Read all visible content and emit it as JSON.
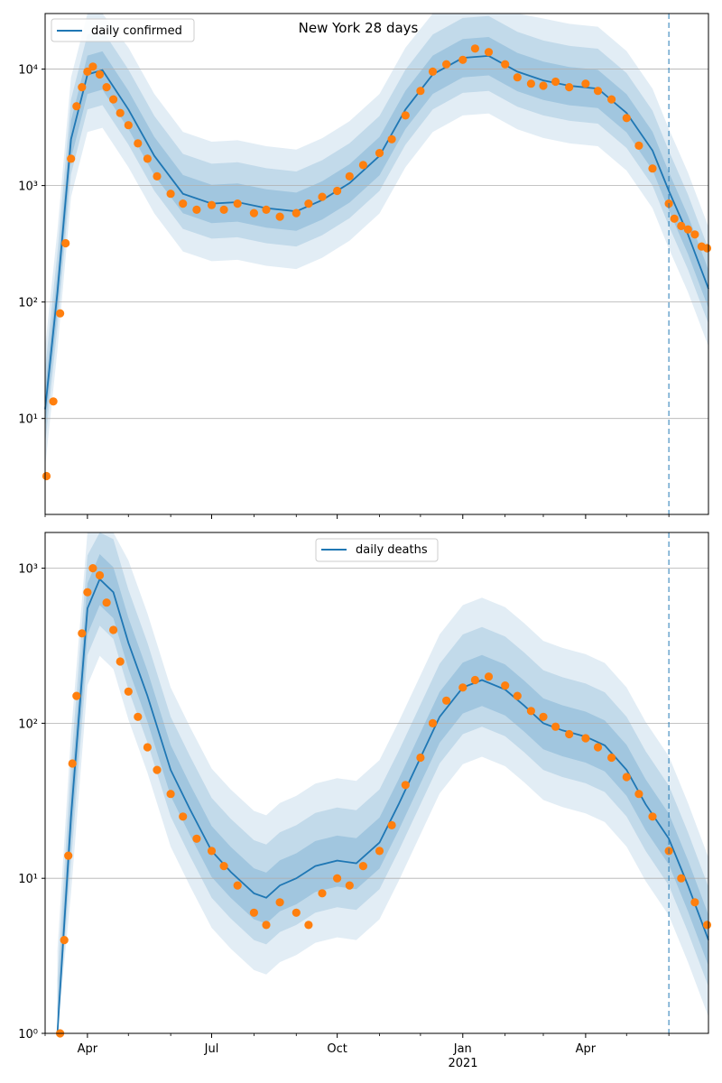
{
  "title": "New York 28 days",
  "colors": {
    "model_line": "#1f77b4",
    "band": "#1f77b4",
    "observed_points": "#ff7f0e",
    "vline": "#1f77b4",
    "grid": "#b0b0b0"
  },
  "x_axis": {
    "major_ticks": [
      {
        "label": "Apr",
        "date": "2020-04-01"
      },
      {
        "label": "Jul",
        "date": "2020-07-01"
      },
      {
        "label": "Oct",
        "date": "2020-10-01"
      },
      {
        "label": "Jan",
        "date": "2021-01-01"
      },
      {
        "label": "Apr",
        "date": "2021-04-01"
      }
    ],
    "year_label": "2021",
    "minor_tick_dates": [
      "2020-03-01",
      "2020-05-01",
      "2020-06-01",
      "2020-08-01",
      "2020-09-01",
      "2020-11-01",
      "2020-12-01",
      "2021-02-01",
      "2021-03-01",
      "2021-05-01",
      "2021-06-01"
    ]
  },
  "chart_data": [
    {
      "type": "line",
      "legend": "daily confirmed",
      "legend_position": "upper left",
      "yscale": "log",
      "xlim": [
        "2020-03-01",
        "2021-06-30"
      ],
      "ylim": [
        1.5,
        30000
      ],
      "yticks": [
        {
          "label": "10¹",
          "value": 10
        },
        {
          "label": "10²",
          "value": 100
        },
        {
          "label": "10³",
          "value": 1000
        },
        {
          "label": "10⁴",
          "value": 10000
        }
      ],
      "grid": "horizontal",
      "forecast_start": "2021-06-01",
      "model": {
        "x": [
          "2020-03-01",
          "2020-03-10",
          "2020-03-20",
          "2020-04-01",
          "2020-04-12",
          "2020-05-01",
          "2020-05-20",
          "2020-06-10",
          "2020-07-01",
          "2020-07-20",
          "2020-08-10",
          "2020-09-01",
          "2020-09-20",
          "2020-10-10",
          "2020-11-01",
          "2020-11-20",
          "2020-12-10",
          "2021-01-01",
          "2021-01-20",
          "2021-02-10",
          "2021-03-01",
          "2021-03-20",
          "2021-04-10",
          "2021-05-01",
          "2021-05-20",
          "2021-06-01",
          "2021-06-15",
          "2021-06-30"
        ],
        "y": [
          12,
          120,
          2500,
          9000,
          9800,
          4500,
          1800,
          850,
          700,
          720,
          640,
          600,
          750,
          1050,
          1800,
          4500,
          9000,
          12500,
          13000,
          9500,
          8000,
          7200,
          6800,
          4200,
          2000,
          900,
          380,
          130
        ]
      },
      "observed_dates": [
        "2020-03-02",
        "2020-03-07",
        "2020-03-12",
        "2020-03-16",
        "2020-03-20",
        "2020-03-24",
        "2020-03-28",
        "2020-04-01",
        "2020-04-05",
        "2020-04-10",
        "2020-04-15",
        "2020-04-20",
        "2020-04-25",
        "2020-05-01",
        "2020-05-08",
        "2020-05-15",
        "2020-05-22",
        "2020-06-01",
        "2020-06-10",
        "2020-06-20",
        "2020-07-01",
        "2020-07-10",
        "2020-07-20",
        "2020-08-01",
        "2020-08-10",
        "2020-08-20",
        "2020-09-01",
        "2020-09-10",
        "2020-09-20",
        "2020-10-01",
        "2020-10-10",
        "2020-10-20",
        "2020-11-01",
        "2020-11-10",
        "2020-11-20",
        "2020-12-01",
        "2020-12-10",
        "2020-12-20",
        "2021-01-01",
        "2021-01-10",
        "2021-01-20",
        "2021-02-01",
        "2021-02-10",
        "2021-02-20",
        "2021-03-01",
        "2021-03-10",
        "2021-03-20",
        "2021-04-01",
        "2021-04-10",
        "2021-04-20",
        "2021-05-01",
        "2021-05-10",
        "2021-05-20",
        "2021-06-01",
        "2021-06-05",
        "2021-06-10",
        "2021-06-15",
        "2021-06-20",
        "2021-06-25",
        "2021-06-29"
      ],
      "observed": [
        3.2,
        14,
        80,
        320,
        1700,
        4800,
        7000,
        9500,
        10500,
        9000,
        7000,
        5500,
        4200,
        3300,
        2300,
        1700,
        1200,
        850,
        700,
        620,
        680,
        620,
        700,
        580,
        620,
        540,
        580,
        700,
        800,
        900,
        1200,
        1500,
        1900,
        2500,
        4000,
        6500,
        9500,
        11000,
        12000,
        15000,
        14000,
        11000,
        8500,
        7500,
        7200,
        7800,
        7000,
        7500,
        6500,
        5500,
        3800,
        2200,
        1400,
        700,
        520,
        450,
        420,
        380,
        300,
        290
      ]
    },
    {
      "type": "line",
      "legend": "daily deaths",
      "legend_position": "upper center",
      "yscale": "log",
      "xlim": [
        "2020-03-01",
        "2021-06-30"
      ],
      "ylim": [
        1,
        1700
      ],
      "yticks": [
        {
          "label": "10⁰",
          "value": 1
        },
        {
          "label": "10¹",
          "value": 10
        },
        {
          "label": "10²",
          "value": 100
        },
        {
          "label": "10³",
          "value": 1000
        }
      ],
      "grid": "horizontal",
      "forecast_start": "2021-06-01",
      "model": {
        "x": [
          "2020-03-10",
          "2020-03-20",
          "2020-04-01",
          "2020-04-10",
          "2020-04-20",
          "2020-05-01",
          "2020-05-15",
          "2020-06-01",
          "2020-06-15",
          "2020-07-01",
          "2020-07-15",
          "2020-08-01",
          "2020-08-10",
          "2020-08-20",
          "2020-09-01",
          "2020-09-15",
          "2020-10-01",
          "2020-10-15",
          "2020-11-01",
          "2020-11-15",
          "2020-12-01",
          "2020-12-15",
          "2021-01-01",
          "2021-01-15",
          "2021-02-01",
          "2021-02-15",
          "2021-03-01",
          "2021-03-15",
          "2021-04-01",
          "2021-04-15",
          "2021-05-01",
          "2021-05-15",
          "2021-06-01",
          "2021-06-15",
          "2021-06-30"
        ],
        "y": [
          1,
          25,
          550,
          850,
          700,
          330,
          150,
          50,
          28,
          15,
          11,
          8,
          7.5,
          9,
          10,
          12,
          13,
          12.5,
          17,
          30,
          60,
          110,
          170,
          190,
          165,
          130,
          100,
          90,
          82,
          72,
          50,
          30,
          18,
          9,
          4
        ]
      },
      "observed_dates": [
        "2020-03-12",
        "2020-03-15",
        "2020-03-18",
        "2020-03-21",
        "2020-03-24",
        "2020-03-28",
        "2020-04-01",
        "2020-04-05",
        "2020-04-10",
        "2020-04-15",
        "2020-04-20",
        "2020-04-25",
        "2020-05-01",
        "2020-05-08",
        "2020-05-15",
        "2020-05-22",
        "2020-06-01",
        "2020-06-10",
        "2020-06-20",
        "2020-07-01",
        "2020-07-10",
        "2020-07-20",
        "2020-08-01",
        "2020-08-10",
        "2020-08-20",
        "2020-09-01",
        "2020-09-10",
        "2020-09-20",
        "2020-10-01",
        "2020-10-10",
        "2020-10-20",
        "2020-11-01",
        "2020-11-10",
        "2020-11-20",
        "2020-12-01",
        "2020-12-10",
        "2020-12-20",
        "2021-01-01",
        "2021-01-10",
        "2021-01-20",
        "2021-02-01",
        "2021-02-10",
        "2021-02-20",
        "2021-03-01",
        "2021-03-10",
        "2021-03-20",
        "2021-04-01",
        "2021-04-10",
        "2021-04-20",
        "2021-05-01",
        "2021-05-10",
        "2021-05-20",
        "2021-06-01",
        "2021-06-10",
        "2021-06-20",
        "2021-06-29"
      ],
      "observed": [
        1,
        4,
        14,
        55,
        150,
        380,
        700,
        1000,
        900,
        600,
        400,
        250,
        160,
        110,
        70,
        50,
        35,
        25,
        18,
        15,
        12,
        9,
        6,
        5,
        7,
        6,
        5,
        8,
        10,
        9,
        12,
        15,
        22,
        40,
        60,
        100,
        140,
        170,
        190,
        200,
        175,
        150,
        120,
        110,
        95,
        85,
        80,
        70,
        60,
        45,
        35,
        25,
        15,
        10,
        7,
        5
      ]
    }
  ]
}
